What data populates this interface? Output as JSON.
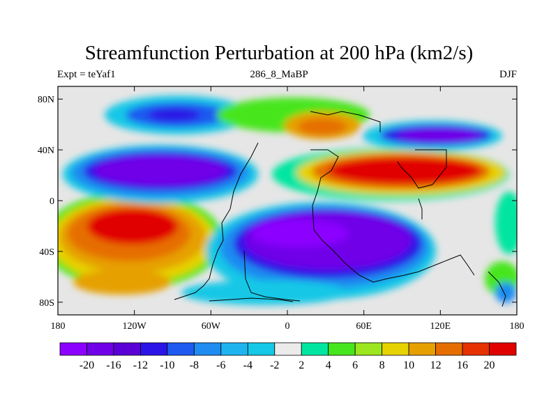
{
  "title": "Streamfunction Perturbation at 200 hPa (km2/s)",
  "subtitle": {
    "left": "Expt = teYaf1",
    "center": "286_8_MaBP",
    "right": "DJF"
  },
  "map": {
    "background_color": "#e6e6e6",
    "lat_ticks": [
      {
        "value": 80,
        "label": "80N"
      },
      {
        "value": 40,
        "label": "40N"
      },
      {
        "value": 0,
        "label": "0"
      },
      {
        "value": -40,
        "label": "40S"
      },
      {
        "value": -80,
        "label": "80S"
      }
    ],
    "lon_ticks": [
      {
        "value": -180,
        "label": "180"
      },
      {
        "value": -120,
        "label": "120W"
      },
      {
        "value": -60,
        "label": "60W"
      },
      {
        "value": 0,
        "label": "0"
      },
      {
        "value": 60,
        "label": "60E"
      },
      {
        "value": 120,
        "label": "120E"
      },
      {
        "value": 180,
        "label": "180"
      }
    ],
    "lon_range": [
      -180,
      180
    ],
    "lat_range": [
      -90,
      90
    ]
  },
  "colorbar": {
    "colors": [
      "#8c00ff",
      "#7000e8",
      "#5a00d6",
      "#2b14e6",
      "#1e5af0",
      "#1e8cf0",
      "#1eb4f0",
      "#14c8e6",
      "#ebebeb",
      "#00e6a0",
      "#46e61e",
      "#9be61e",
      "#e6d200",
      "#e6a000",
      "#e66e00",
      "#e63200",
      "#e10000"
    ],
    "labels": [
      "-20",
      "-16",
      "-12",
      "-10",
      "-8",
      "-6",
      "-4",
      "-2",
      "2",
      "4",
      "6",
      "8",
      "10",
      "12",
      "16",
      "20"
    ]
  }
}
